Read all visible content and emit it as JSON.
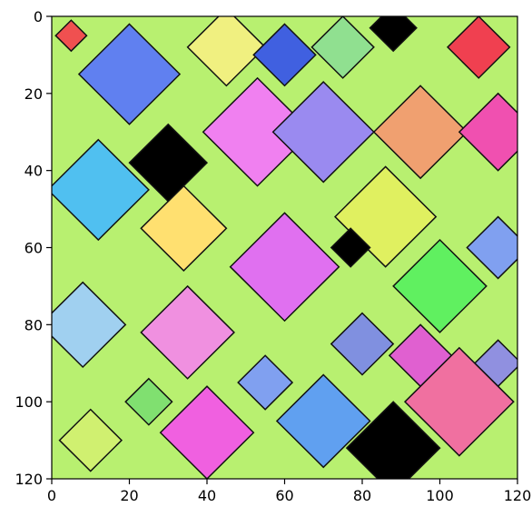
{
  "chart_data": {
    "type": "image",
    "xlim": [
      0,
      120
    ],
    "xticks": [
      0,
      20,
      40,
      60,
      80,
      100,
      120
    ],
    "ylim": [
      120,
      0
    ],
    "yticks": [
      0,
      20,
      40,
      60,
      80,
      100,
      120
    ]
  }
}
